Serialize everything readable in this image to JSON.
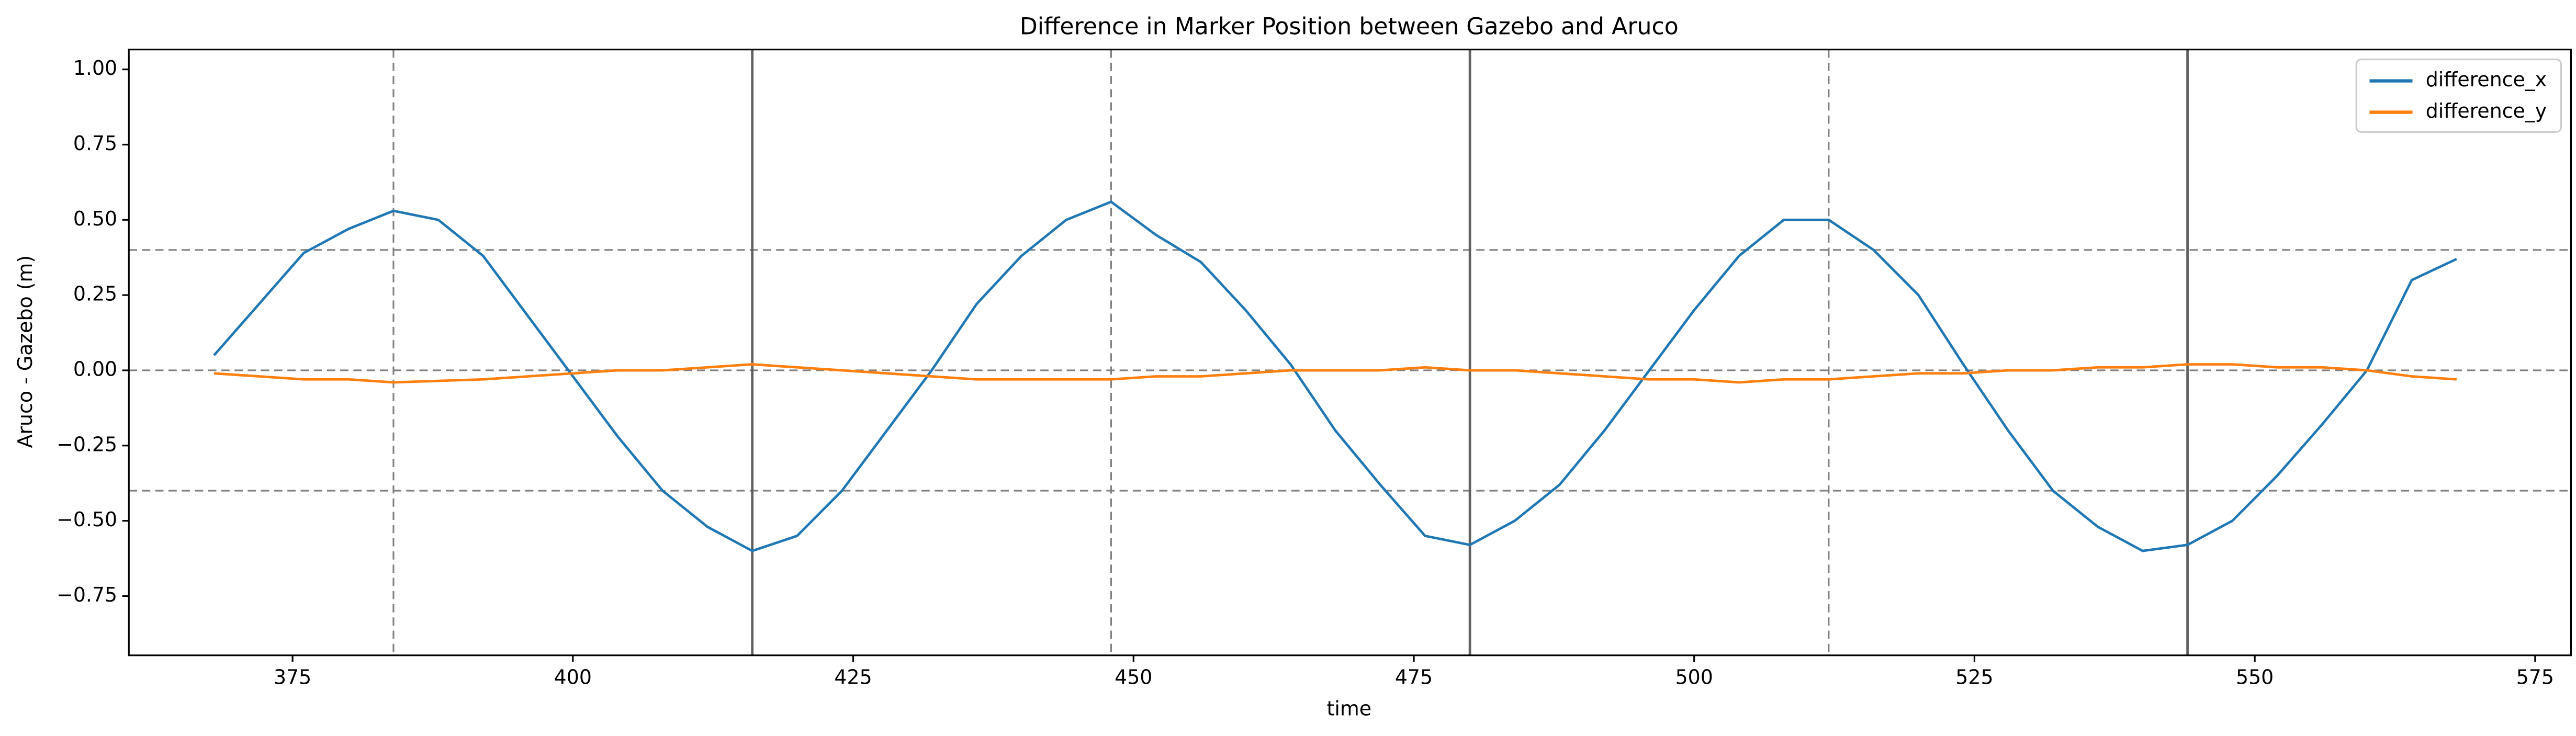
{
  "chart_data": {
    "type": "line",
    "title": "Difference in Marker Position between Gazebo and Aruco",
    "x_label": "time",
    "y_label": "Aruco - Gazebo (m)",
    "x": [
      368,
      372,
      376,
      380,
      384,
      388,
      392,
      396,
      400,
      404,
      408,
      412,
      416,
      420,
      424,
      428,
      432,
      436,
      440,
      444,
      448,
      452,
      456,
      460,
      464,
      468,
      472,
      476,
      480,
      484,
      488,
      492,
      496,
      500,
      504,
      508,
      512,
      516,
      520,
      524,
      528,
      532,
      536,
      540,
      544,
      548,
      552,
      556,
      560,
      564,
      568
    ],
    "series": [
      {
        "name": "difference_x",
        "color": "#1f77b4",
        "values": [
          0.05,
          0.22,
          0.39,
          0.47,
          0.53,
          0.5,
          0.38,
          0.18,
          -0.02,
          -0.22,
          -0.4,
          -0.52,
          -0.6,
          -0.55,
          -0.4,
          -0.2,
          0.0,
          0.22,
          0.38,
          0.5,
          0.56,
          0.45,
          0.36,
          0.2,
          0.02,
          -0.2,
          -0.38,
          -0.55,
          -0.58,
          -0.5,
          -0.38,
          -0.2,
          0.0,
          0.2,
          0.38,
          0.5,
          0.5,
          0.4,
          0.25,
          0.02,
          -0.2,
          -0.4,
          -0.52,
          -0.6,
          -0.58,
          -0.5,
          -0.35,
          -0.18,
          0.0,
          0.3,
          0.37
        ]
      },
      {
        "name": "difference_y",
        "color": "#ff7f0e",
        "values": [
          -0.01,
          -0.02,
          -0.03,
          -0.03,
          -0.04,
          -0.035,
          -0.03,
          -0.02,
          -0.01,
          0.0,
          0.0,
          0.01,
          0.02,
          0.01,
          0.0,
          -0.01,
          -0.02,
          -0.03,
          -0.03,
          -0.03,
          -0.03,
          -0.02,
          -0.02,
          -0.01,
          0.0,
          0.0,
          0.0,
          0.01,
          0.0,
          0.0,
          -0.01,
          -0.02,
          -0.03,
          -0.03,
          -0.04,
          -0.03,
          -0.03,
          -0.02,
          -0.01,
          -0.01,
          0.0,
          0.0,
          0.01,
          0.01,
          0.02,
          0.02,
          0.01,
          0.01,
          0.0,
          -0.02,
          -0.03
        ]
      }
    ],
    "xlim": [
      360.4,
      578.2
    ],
    "ylim": [
      -0.947,
      1.066
    ],
    "xticks": [
      375,
      400,
      425,
      450,
      475,
      500,
      525,
      550,
      575
    ],
    "yticks": [
      {
        "value": -0.75,
        "label": "−0.75"
      },
      {
        "value": -0.5,
        "label": "−0.50"
      },
      {
        "value": -0.25,
        "label": "−0.25"
      },
      {
        "value": 0,
        "label": "0.00"
      },
      {
        "value": 0.25,
        "label": "0.25"
      },
      {
        "value": 0.5,
        "label": "0.50"
      },
      {
        "value": 0.75,
        "label": "0.75"
      },
      {
        "value": 1,
        "label": "1.00"
      }
    ],
    "hlines_dashed": [
      0.4,
      0,
      -0.4
    ],
    "vlines_dashed": [
      384,
      448,
      512
    ],
    "vlines_solid": [
      416,
      480,
      544
    ],
    "legend": "upper right"
  }
}
